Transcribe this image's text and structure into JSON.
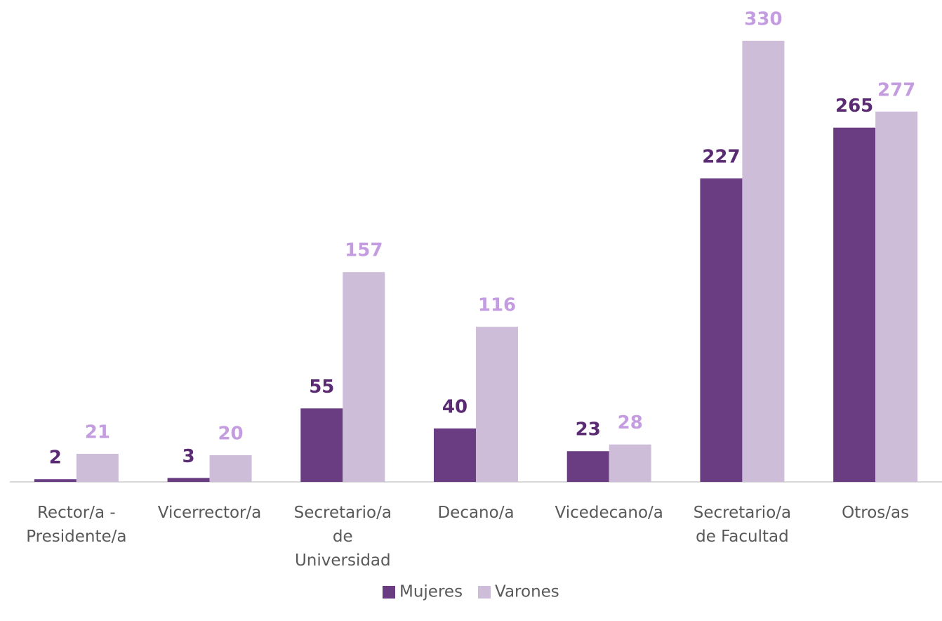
{
  "chart_data": {
    "type": "bar",
    "categories": [
      "Rector/a -\nPresidente/a",
      "Vicerrector/a",
      "Secretario/a\nde\nUniversidad",
      "Decano/a",
      "Vicedecano/a",
      "Secretario/a\nde Facultad",
      "Otros/as"
    ],
    "series": [
      {
        "name": "Mujeres",
        "color": "#6a3d82",
        "label_color": "#5a2a73",
        "values": [
          2,
          3,
          55,
          40,
          23,
          227,
          265
        ]
      },
      {
        "name": "Varones",
        "color": "#cdbdd8",
        "label_color": "#c49ce0",
        "values": [
          21,
          20,
          157,
          116,
          28,
          330,
          277
        ]
      }
    ],
    "legend": "bottom"
  }
}
